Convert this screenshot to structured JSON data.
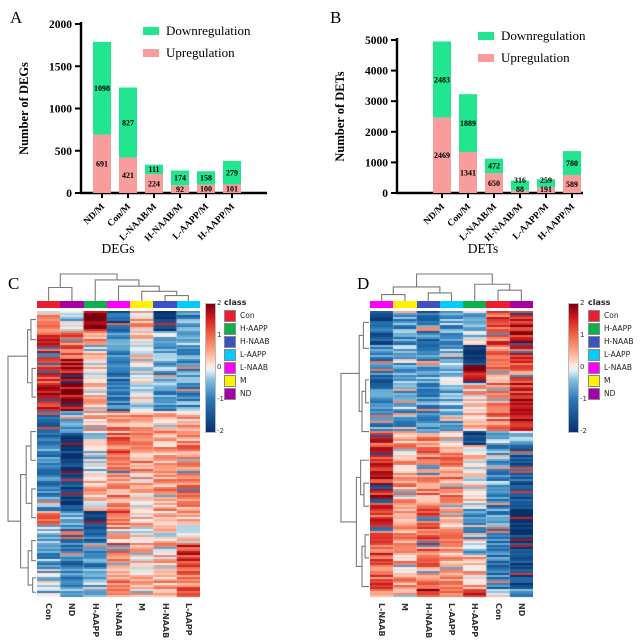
{
  "panel_labels": {
    "A": "A",
    "B": "B",
    "C": "C",
    "D": "D"
  },
  "colors": {
    "downregulation": "#22E68F",
    "upregulation": "#F89C9C",
    "class_con": "#ED1C2E",
    "class_h_aapp": "#0DB14B",
    "class_h_naab": "#3A52C4",
    "class_l_aapp": "#00CCFF",
    "class_l_naab": "#FF00FF",
    "class_m": "#FFF100",
    "class_nd": "#A800A8"
  },
  "chart_data": [
    {
      "id": "A",
      "type": "bar",
      "stacked": true,
      "xlabel": "DEGs",
      "ylabel": "Number of DEGs",
      "ylim": [
        0,
        2000
      ],
      "yticks": [
        0,
        500,
        1000,
        1500,
        2000
      ],
      "grid": false,
      "legend_position": "top-right",
      "legend_order": [
        "Downregulation",
        "Upregulation"
      ],
      "categories": [
        "ND/M",
        "Con/M",
        "L-NAAB/M",
        "H-NAAB/M",
        "L-AAPP/M",
        "H-AAPP/M"
      ],
      "series": [
        {
          "name": "Upregulation",
          "color": "#F89C9C",
          "values": [
            691,
            421,
            224,
            92,
            100,
            101
          ]
        },
        {
          "name": "Downregulation",
          "color": "#22E68F",
          "values": [
            1098,
            827,
            111,
            174,
            158,
            279
          ]
        }
      ]
    },
    {
      "id": "B",
      "type": "bar",
      "stacked": true,
      "xlabel": "DETs",
      "ylabel": "Number of DETs",
      "ylim": [
        0,
        5000
      ],
      "yticks": [
        0,
        1000,
        2000,
        3000,
        4000,
        5000
      ],
      "grid": false,
      "legend_position": "top-right",
      "legend_order": [
        "Downregulation",
        "Upregulation"
      ],
      "categories": [
        "ND/M",
        "Con/M",
        "L-NAAB/M",
        "H-NAAB/M",
        "L-AAPP/M",
        "H-AAPP/M"
      ],
      "series": [
        {
          "name": "Upregulation",
          "color": "#F89C9C",
          "values": [
            2469,
            1341,
            650,
            88,
            191,
            589
          ]
        },
        {
          "name": "Downregulation",
          "color": "#22E68F",
          "values": [
            2483,
            1889,
            472,
            316,
            259,
            780
          ]
        }
      ]
    },
    {
      "id": "C",
      "type": "heatmap",
      "seed": 7,
      "columns": [
        "Con",
        "ND",
        "H-AAPP",
        "L-NAAB",
        "M",
        "H-NAAB",
        "L-AAPP"
      ],
      "column_class_colors": [
        "#ED1C2E",
        "#A800A8",
        "#0DB14B",
        "#FF00FF",
        "#FFF100",
        "#3A52C4",
        "#00CCFF"
      ],
      "value_range": [
        -2,
        2
      ],
      "colorbar_ticks": [
        "2",
        "1",
        "0",
        "-1",
        "-2"
      ],
      "legend_title": "class",
      "legend": [
        {
          "label": "Con",
          "color": "#ED1C2E"
        },
        {
          "label": "H-AAPP",
          "color": "#0DB14B"
        },
        {
          "label": "H-NAAB",
          "color": "#3A52C4"
        },
        {
          "label": "L-AAPP",
          "color": "#00CCFF"
        },
        {
          "label": "L-NAAB",
          "color": "#FF00FF"
        },
        {
          "label": "M",
          "color": "#FFF100"
        },
        {
          "label": "ND",
          "color": "#A800A8"
        }
      ],
      "colormap_stops": [
        [
          -2,
          "#08306B"
        ],
        [
          -1,
          "#2878B8"
        ],
        [
          -0.4,
          "#7FBCDB"
        ],
        [
          -0.07,
          "#E8F0F5"
        ],
        [
          0.07,
          "#FBEAE3"
        ],
        [
          0.5,
          "#FCA98C"
        ],
        [
          1.1,
          "#EE5C40"
        ],
        [
          1.6,
          "#CB181D"
        ],
        [
          2,
          "#7A000F"
        ]
      ],
      "row_blocks": [
        {
          "frac": 0.07,
          "means": [
            0.5,
            -0.3,
            1.7,
            -1.4,
            0.4,
            -1.6,
            -0.8
          ]
        },
        {
          "frac": 0.1,
          "means": [
            1.2,
            0.9,
            0.6,
            -0.9,
            0.2,
            -0.5,
            -0.6
          ]
        },
        {
          "frac": 0.18,
          "means": [
            1.4,
            1.8,
            0.2,
            -1.1,
            0.0,
            -0.7,
            -0.8
          ]
        },
        {
          "frac": 0.08,
          "means": [
            -1.3,
            -0.7,
            0.4,
            0.7,
            0.6,
            0.5,
            0.4
          ]
        },
        {
          "frac": 0.14,
          "means": [
            -0.9,
            -1.9,
            -0.2,
            1.0,
            0.7,
            0.5,
            0.7
          ]
        },
        {
          "frac": 0.13,
          "means": [
            -0.8,
            -1.6,
            0.3,
            0.8,
            0.4,
            0.6,
            0.8
          ]
        },
        {
          "frac": 0.05,
          "means": [
            0.9,
            -0.6,
            -1.7,
            1.0,
            0.3,
            0.4,
            0.5
          ]
        },
        {
          "frac": 0.06,
          "means": [
            -0.5,
            -0.9,
            -1.2,
            0.6,
            0.1,
            0.2,
            0.3
          ]
        },
        {
          "frac": 0.09,
          "means": [
            -0.7,
            -1.0,
            -0.8,
            0.9,
            0.3,
            0.4,
            1.4
          ]
        },
        {
          "frac": 0.1,
          "means": [
            -0.4,
            -0.8,
            -0.5,
            0.7,
            0.4,
            0.5,
            0.9
          ]
        }
      ],
      "col_dendrogram": {
        "h": 1,
        "c": [
          {
            "h": 0.5,
            "c": [
              {
                "leaf": 0
              },
              {
                "leaf": 1
              }
            ]
          },
          {
            "h": 0.78,
            "c": [
              {
                "leaf": 2
              },
              {
                "h": 0.55,
                "c": [
                  {
                    "leaf": 3
                  },
                  {
                    "h": 0.36,
                    "c": [
                      {
                        "leaf": 4
                      },
                      {
                        "h": 0.2,
                        "c": [
                          {
                            "leaf": 5
                          },
                          {
                            "leaf": 6
                          }
                        ]
                      }
                    ]
                  }
                ]
              }
            ]
          }
        ]
      },
      "row_dendrogram": {
        "h": 1,
        "c": [
          {
            "h": 0.3,
            "c": [
              {
                "h": 0.18,
                "c": [
                  {
                    "p": 0.03
                  },
                  {
                    "p": 0.1
                  }
                ]
              },
              {
                "h": 0.14,
                "c": [
                  {
                    "p": 0.2
                  },
                  {
                    "p": 0.3
                  }
                ]
              }
            ]
          },
          {
            "h": 0.55,
            "c": [
              {
                "h": 0.35,
                "c": [
                  {
                    "h": 0.18,
                    "c": [
                      {
                        "p": 0.42
                      },
                      {
                        "p": 0.52
                      }
                    ]
                  },
                  {
                    "h": 0.15,
                    "c": [
                      {
                        "p": 0.62
                      },
                      {
                        "p": 0.72
                      }
                    ]
                  }
                ]
              },
              {
                "h": 0.28,
                "c": [
                  {
                    "h": 0.15,
                    "c": [
                      {
                        "p": 0.8
                      },
                      {
                        "p": 0.87
                      }
                    ]
                  },
                  {
                    "h": 0.12,
                    "c": [
                      {
                        "p": 0.93
                      },
                      {
                        "p": 0.98
                      }
                    ]
                  }
                ]
              }
            ]
          }
        ]
      }
    },
    {
      "id": "D",
      "type": "heatmap",
      "seed": 13,
      "columns": [
        "L-NAAB",
        "M",
        "H-NAAB",
        "L-AAPP",
        "H-AAPP",
        "Con",
        "ND"
      ],
      "column_class_colors": [
        "#FF00FF",
        "#FFF100",
        "#3A52C4",
        "#00CCFF",
        "#0DB14B",
        "#ED1C2E",
        "#A800A8"
      ],
      "value_range": [
        -2,
        2
      ],
      "colorbar_ticks": [
        "2",
        "1",
        "0",
        "-1",
        "-2"
      ],
      "legend_title": "class",
      "legend": [
        {
          "label": "Con",
          "color": "#ED1C2E"
        },
        {
          "label": "H-AAPP",
          "color": "#0DB14B"
        },
        {
          "label": "H-NAAB",
          "color": "#3A52C4"
        },
        {
          "label": "L-AAPP",
          "color": "#00CCFF"
        },
        {
          "label": "L-NAAB",
          "color": "#FF00FF"
        },
        {
          "label": "M",
          "color": "#FFF100"
        },
        {
          "label": "ND",
          "color": "#A800A8"
        }
      ],
      "colormap_stops": [
        [
          -2,
          "#08306B"
        ],
        [
          -1,
          "#2878B8"
        ],
        [
          -0.4,
          "#7FBCDB"
        ],
        [
          -0.07,
          "#E8F0F5"
        ],
        [
          0.07,
          "#FBEAE3"
        ],
        [
          0.5,
          "#FCA98C"
        ],
        [
          1.1,
          "#EE5C40"
        ],
        [
          1.6,
          "#CB181D"
        ],
        [
          2,
          "#7A000F"
        ]
      ],
      "row_blocks": [
        {
          "frac": 0.12,
          "means": [
            -1.4,
            -0.8,
            -1.0,
            -0.6,
            -0.3,
            1.1,
            1.6
          ]
        },
        {
          "frac": 0.07,
          "means": [
            -1.0,
            -0.6,
            -0.8,
            -0.5,
            -1.8,
            0.9,
            1.3
          ]
        },
        {
          "frac": 0.06,
          "means": [
            -1.1,
            -0.5,
            -0.7,
            -0.4,
            1.9,
            0.7,
            0.9
          ]
        },
        {
          "frac": 0.17,
          "means": [
            -0.9,
            -0.6,
            -0.8,
            -0.5,
            0.3,
            0.8,
            1.5
          ]
        },
        {
          "frac": 0.05,
          "means": [
            1.3,
            0.4,
            0.6,
            0.5,
            -1.8,
            -0.4,
            -0.5
          ]
        },
        {
          "frac": 0.2,
          "means": [
            1.5,
            0.6,
            0.8,
            0.7,
            0.1,
            -0.7,
            -1.3
          ]
        },
        {
          "frac": 0.18,
          "means": [
            1.2,
            0.7,
            1.0,
            0.6,
            -0.5,
            -0.9,
            -1.8
          ]
        },
        {
          "frac": 0.12,
          "means": [
            1.1,
            0.6,
            0.8,
            0.5,
            0.4,
            -1.0,
            -1.6
          ]
        },
        {
          "frac": 0.03,
          "means": [
            0.8,
            0.5,
            1.5,
            0.8,
            1.6,
            -0.6,
            -0.9
          ]
        }
      ],
      "col_dendrogram": {
        "h": 1,
        "c": [
          {
            "h": 0.52,
            "c": [
              {
                "h": 0.24,
                "c": [
                  {
                    "leaf": 0
                  },
                  {
                    "leaf": 1
                  }
                ]
              },
              {
                "h": 0.3,
                "c": [
                  {
                    "leaf": 2
                  },
                  {
                    "leaf": 3
                  }
                ]
              }
            ]
          },
          {
            "h": 0.62,
            "c": [
              {
                "leaf": 4
              },
              {
                "h": 0.4,
                "c": [
                  {
                    "leaf": 5
                  },
                  {
                    "leaf": 6
                  }
                ]
              }
            ]
          }
        ]
      },
      "row_dendrogram": {
        "h": 1,
        "c": [
          {
            "h": 0.35,
            "c": [
              {
                "h": 0.2,
                "c": [
                  {
                    "p": 0.04
                  },
                  {
                    "p": 0.13
                  }
                ]
              },
              {
                "h": 0.25,
                "c": [
                  {
                    "h": 0.12,
                    "c": [
                      {
                        "p": 0.24
                      },
                      {
                        "p": 0.32
                      }
                    ]
                  },
                  {
                    "p": 0.42
                  }
                ]
              }
            ]
          },
          {
            "h": 0.45,
            "c": [
              {
                "h": 0.3,
                "c": [
                  {
                    "p": 0.52
                  },
                  {
                    "h": 0.18,
                    "c": [
                      {
                        "p": 0.6
                      },
                      {
                        "p": 0.68
                      }
                    ]
                  }
                ]
              },
              {
                "h": 0.25,
                "c": [
                  {
                    "h": 0.14,
                    "c": [
                      {
                        "p": 0.78
                      },
                      {
                        "p": 0.86
                      }
                    ]
                  },
                  {
                    "p": 0.96
                  }
                ]
              }
            ]
          }
        ]
      }
    }
  ]
}
